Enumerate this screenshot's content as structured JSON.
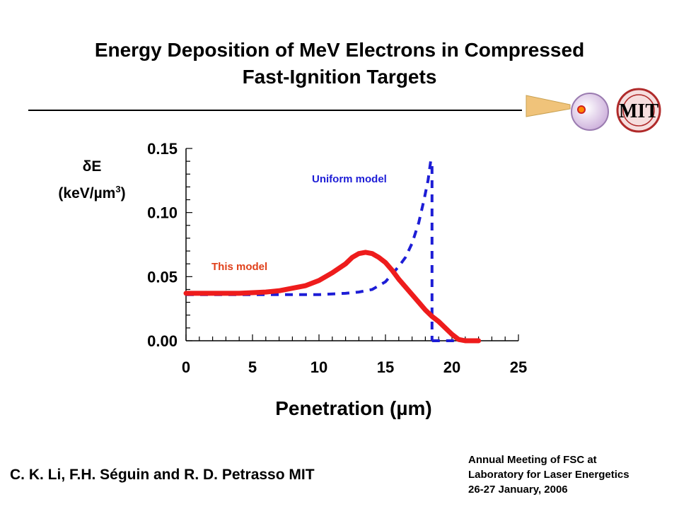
{
  "header": {
    "title_line1": "Energy Deposition of MeV Electrons in Compressed",
    "title_line2": "Fast-Ignition Targets"
  },
  "logo": {
    "text": "MIT"
  },
  "footer": {
    "authors": "C. K. Li, F.H. Séguin and R. D. Petrasso      MIT",
    "meeting_line1": "Annual Meeting of FSC at",
    "meeting_line2": "Laboratory for Laser Energetics",
    "meeting_line3": "26-27 January, 2006"
  },
  "colors": {
    "this_model": "#ee1c1c",
    "uniform_model": "#1d1dd6",
    "annotation_red": "#e0401a"
  },
  "chart_data": {
    "type": "line",
    "title": "",
    "ylabel_line1": "δE",
    "ylabel_line2": "(keV/µm",
    "ylabel_sup": "3",
    "ylabel_close": ")",
    "xlabel": "Penetration (µm)",
    "xlim": [
      0,
      25
    ],
    "ylim": [
      0,
      0.15
    ],
    "xticks": [
      "0",
      "5",
      "10",
      "15",
      "20",
      "25"
    ],
    "yticks": [
      "0.00",
      "0.05",
      "0.10",
      "0.15"
    ],
    "grid": false,
    "series": [
      {
        "name": "This model",
        "style": "solid",
        "x": [
          0,
          2,
          4,
          6,
          7,
          8,
          9,
          10,
          11,
          12,
          12.5,
          13,
          13.5,
          14,
          14.5,
          15,
          15.5,
          16,
          16.5,
          17,
          17.5,
          18,
          18.5,
          19,
          19.5,
          20,
          20.5,
          21,
          21.5,
          22
        ],
        "y": [
          0.037,
          0.037,
          0.037,
          0.038,
          0.039,
          0.041,
          0.043,
          0.047,
          0.053,
          0.06,
          0.065,
          0.068,
          0.069,
          0.068,
          0.065,
          0.061,
          0.055,
          0.048,
          0.042,
          0.036,
          0.03,
          0.024,
          0.019,
          0.015,
          0.01,
          0.005,
          0.001,
          0,
          0,
          0
        ]
      },
      {
        "name": "Uniform model",
        "style": "dashed",
        "x": [
          0,
          2,
          4,
          6,
          8,
          10,
          12,
          13,
          14,
          15,
          15.5,
          16,
          16.5,
          17,
          17.5,
          17.9,
          18.2,
          18.4,
          18.5
        ],
        "y": [
          0.036,
          0.036,
          0.036,
          0.036,
          0.036,
          0.036,
          0.037,
          0.038,
          0.04,
          0.046,
          0.052,
          0.058,
          0.065,
          0.076,
          0.092,
          0.11,
          0.125,
          0.14,
          0.14
        ],
        "drop_x": 18.5,
        "tail_x": [
          18.5,
          19.5,
          20.5,
          21.5
        ],
        "tail_y": [
          0,
          0,
          0,
          0
        ]
      }
    ]
  }
}
